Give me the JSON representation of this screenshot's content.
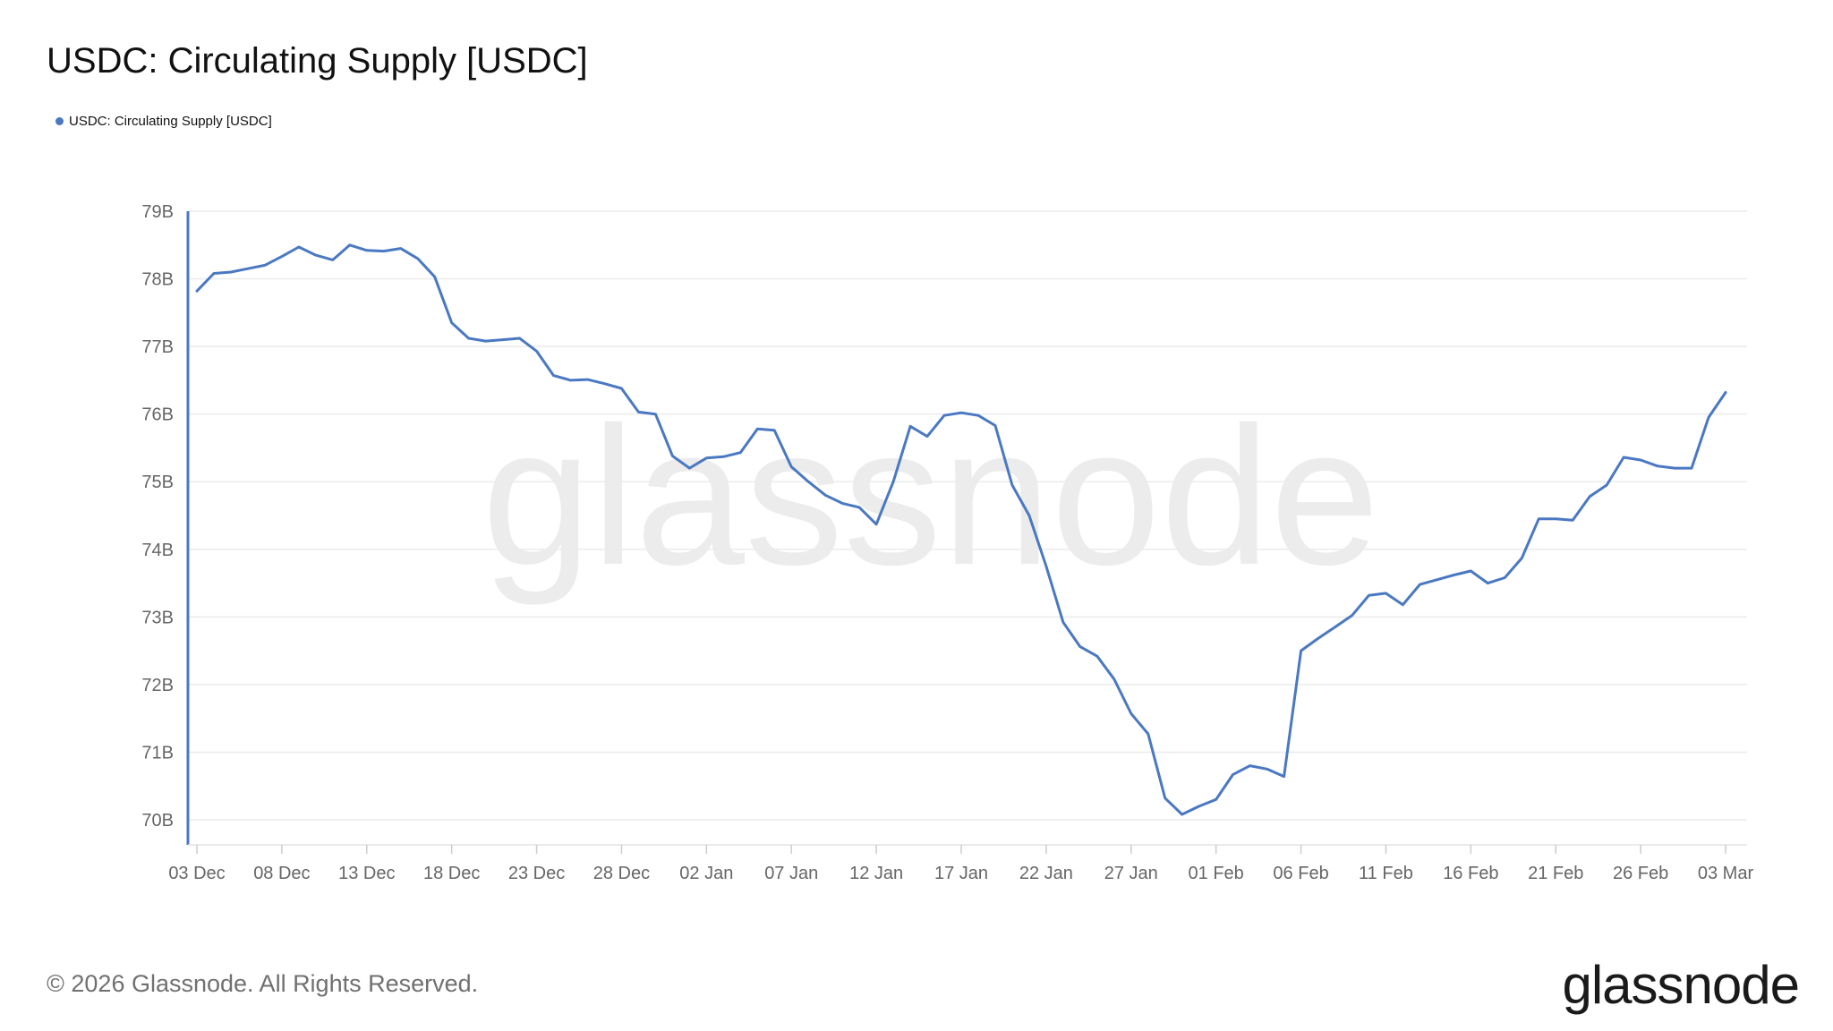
{
  "header": {
    "title": "USDC: Circulating Supply [USDC]"
  },
  "legend": {
    "label": "USDC: Circulating Supply [USDC]",
    "color": "#4a78c2"
  },
  "footer": {
    "copyright": "© 2026 Glassnode. All Rights Reserved.",
    "brand": "glassnode"
  },
  "watermark": "glassnode",
  "chart_data": {
    "type": "line",
    "title": "USDC: Circulating Supply [USDC]",
    "xlabel": "",
    "ylabel": "",
    "ylim": [
      69.6,
      79
    ],
    "grid": true,
    "legend_position": "top-left",
    "yticks": [
      {
        "value": 70,
        "label": "70B"
      },
      {
        "value": 71,
        "label": "71B"
      },
      {
        "value": 72,
        "label": "72B"
      },
      {
        "value": 73,
        "label": "73B"
      },
      {
        "value": 74,
        "label": "74B"
      },
      {
        "value": 75,
        "label": "75B"
      },
      {
        "value": 76,
        "label": "76B"
      },
      {
        "value": 77,
        "label": "77B"
      },
      {
        "value": 78,
        "label": "78B"
      },
      {
        "value": 79,
        "label": "79B"
      }
    ],
    "xticks": [
      {
        "date": "2025-12-03",
        "label": "03 Dec"
      },
      {
        "date": "2025-12-08",
        "label": "08 Dec"
      },
      {
        "date": "2025-12-13",
        "label": "13 Dec"
      },
      {
        "date": "2025-12-18",
        "label": "18 Dec"
      },
      {
        "date": "2025-12-23",
        "label": "23 Dec"
      },
      {
        "date": "2025-12-28",
        "label": "28 Dec"
      },
      {
        "date": "2026-01-02",
        "label": "02 Jan"
      },
      {
        "date": "2026-01-07",
        "label": "07 Jan"
      },
      {
        "date": "2026-01-12",
        "label": "12 Jan"
      },
      {
        "date": "2026-01-17",
        "label": "17 Jan"
      },
      {
        "date": "2026-01-22",
        "label": "22 Jan"
      },
      {
        "date": "2026-01-27",
        "label": "27 Jan"
      },
      {
        "date": "2026-02-01",
        "label": "01 Feb"
      },
      {
        "date": "2026-02-06",
        "label": "06 Feb"
      },
      {
        "date": "2026-02-11",
        "label": "11 Feb"
      },
      {
        "date": "2026-02-16",
        "label": "16 Feb"
      },
      {
        "date": "2026-02-21",
        "label": "21 Feb"
      },
      {
        "date": "2026-02-26",
        "label": "26 Feb"
      },
      {
        "date": "2026-03-03",
        "label": "03 Mar"
      }
    ],
    "x": [
      "2025-12-03",
      "2025-12-04",
      "2025-12-05",
      "2025-12-06",
      "2025-12-07",
      "2025-12-08",
      "2025-12-09",
      "2025-12-10",
      "2025-12-11",
      "2025-12-12",
      "2025-12-13",
      "2025-12-14",
      "2025-12-15",
      "2025-12-16",
      "2025-12-17",
      "2025-12-18",
      "2025-12-19",
      "2025-12-20",
      "2025-12-21",
      "2025-12-22",
      "2025-12-23",
      "2025-12-24",
      "2025-12-25",
      "2025-12-26",
      "2025-12-27",
      "2025-12-28",
      "2025-12-29",
      "2025-12-30",
      "2025-12-31",
      "2026-01-01",
      "2026-01-02",
      "2026-01-03",
      "2026-01-04",
      "2026-01-05",
      "2026-01-06",
      "2026-01-07",
      "2026-01-08",
      "2026-01-09",
      "2026-01-10",
      "2026-01-11",
      "2026-01-12",
      "2026-01-13",
      "2026-01-14",
      "2026-01-15",
      "2026-01-16",
      "2026-01-17",
      "2026-01-18",
      "2026-01-19",
      "2026-01-20",
      "2026-01-21",
      "2026-01-22",
      "2026-01-23",
      "2026-01-24",
      "2026-01-25",
      "2026-01-26",
      "2026-01-27",
      "2026-01-28",
      "2026-01-29",
      "2026-01-30",
      "2026-01-31",
      "2026-02-01",
      "2026-02-02",
      "2026-02-03",
      "2026-02-04",
      "2026-02-05",
      "2026-02-06",
      "2026-02-07",
      "2026-02-08",
      "2026-02-09",
      "2026-02-10",
      "2026-02-11",
      "2026-02-12",
      "2026-02-13",
      "2026-02-14",
      "2026-02-15",
      "2026-02-16",
      "2026-02-17",
      "2026-02-18",
      "2026-02-19",
      "2026-02-20",
      "2026-02-21",
      "2026-02-22",
      "2026-02-23",
      "2026-02-24",
      "2026-02-25",
      "2026-02-26",
      "2026-02-27",
      "2026-02-28",
      "2026-03-01",
      "2026-03-02",
      "2026-03-03"
    ],
    "series": [
      {
        "name": "USDC: Circulating Supply [USDC]",
        "color": "#4a78c2",
        "values": [
          77.82,
          78.08,
          78.1,
          78.15,
          78.2,
          78.33,
          78.47,
          78.35,
          78.28,
          78.5,
          78.42,
          78.41,
          78.45,
          78.3,
          78.03,
          77.35,
          77.12,
          77.08,
          77.1,
          77.12,
          76.93,
          76.57,
          76.5,
          76.51,
          76.45,
          76.38,
          76.03,
          76.0,
          75.38,
          75.2,
          75.35,
          75.37,
          75.43,
          75.78,
          75.76,
          75.22,
          75.0,
          74.8,
          74.68,
          74.62,
          74.37,
          75.0,
          75.82,
          75.67,
          75.98,
          76.02,
          75.98,
          75.83,
          74.95,
          74.5,
          73.75,
          72.92,
          72.56,
          72.42,
          72.08,
          71.57,
          71.27,
          70.32,
          70.08,
          70.2,
          70.3,
          70.67,
          70.8,
          70.75,
          70.64,
          72.5,
          72.68,
          72.85,
          73.02,
          73.32,
          73.35,
          73.18,
          73.48,
          73.55,
          73.62,
          73.68,
          73.5,
          73.58,
          73.87,
          74.45,
          74.45,
          74.43,
          74.78,
          74.95,
          75.36,
          75.32,
          75.23,
          75.2,
          75.2,
          75.95,
          76.32
        ]
      }
    ]
  }
}
